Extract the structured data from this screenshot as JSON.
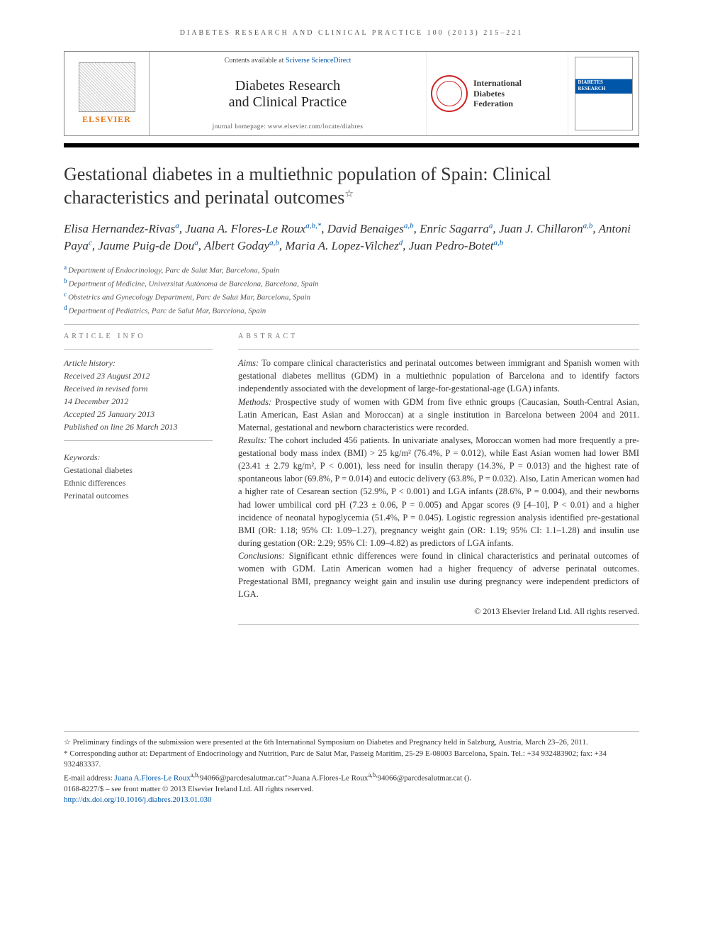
{
  "running_head": "DIABETES RESEARCH AND CLINICAL PRACTICE 100 (2013) 215–221",
  "masthead": {
    "elsevier": "ELSEVIER",
    "contents_prefix": "Contents available at ",
    "contents_link": "Sciverse ScienceDirect",
    "journal_line1": "Diabetes Research",
    "journal_line2": "and Clinical Practice",
    "homepage": "journal homepage: www.elsevier.com/locate/diabres",
    "idf_line1": "International",
    "idf_line2": "Diabetes",
    "idf_line3": "Federation",
    "cover_title": "DIABETES RESEARCH CLINICAL PRACTICE"
  },
  "title": "Gestational diabetes in a multiethnic population of Spain: Clinical characteristics and perinatal outcomes",
  "title_star": "☆",
  "authors_html_parts": [
    {
      "name": "Elisa Hernandez-Rivas",
      "aff": "a"
    },
    {
      "name": "Juana A. Flores-Le Roux",
      "aff": "a,b,*"
    },
    {
      "name": "David Benaiges",
      "aff": "a,b"
    },
    {
      "name": "Enric Sagarra",
      "aff": "a"
    },
    {
      "name": "Juan J. Chillaron",
      "aff": "a,b"
    },
    {
      "name": "Antoni Paya",
      "aff": "c"
    },
    {
      "name": "Jaume Puig-de Dou",
      "aff": "a"
    },
    {
      "name": "Albert Goday",
      "aff": "a,b"
    },
    {
      "name": "Maria A. Lopez-Vilchez",
      "aff": "d"
    },
    {
      "name": "Juan Pedro-Botet",
      "aff": "a,b"
    }
  ],
  "affiliations": [
    {
      "key": "a",
      "text": "Department of Endocrinology, Parc de Salut Mar, Barcelona, Spain"
    },
    {
      "key": "b",
      "text": "Department of Medicine, Universitat Autònoma de Barcelona, Barcelona, Spain"
    },
    {
      "key": "c",
      "text": "Obstetrics and Gynecology Department, Parc de Salut Mar, Barcelona, Spain"
    },
    {
      "key": "d",
      "text": "Department of Pediatrics, Parc de Salut Mar, Barcelona, Spain"
    }
  ],
  "article_info_head": "ARTICLE INFO",
  "abstract_head": "ABSTRACT",
  "history": {
    "label": "Article history:",
    "received": "Received 23 August 2012",
    "revised1": "Received in revised form",
    "revised2": "14 December 2012",
    "accepted": "Accepted 25 January 2013",
    "published": "Published on line 26 March 2013"
  },
  "keywords": {
    "label": "Keywords:",
    "items": [
      "Gestational diabetes",
      "Ethnic differences",
      "Perinatal outcomes"
    ]
  },
  "abstract": {
    "aims_label": "Aims:",
    "aims": " To compare clinical characteristics and perinatal outcomes between immigrant and Spanish women with gestational diabetes mellitus (GDM) in a multiethnic population of Barcelona and to identify factors independently associated with the development of large-for-gestational-age (LGA) infants.",
    "methods_label": "Methods:",
    "methods": " Prospective study of women with GDM from five ethnic groups (Caucasian, South-Central Asian, Latin American, East Asian and Moroccan) at a single institution in Barcelona between 2004 and 2011. Maternal, gestational and newborn characteristics were recorded.",
    "results_label": "Results:",
    "results": " The cohort included 456 patients. In univariate analyses, Moroccan women had more frequently a pre-gestational body mass index (BMI) > 25 kg/m² (76.4%, P = 0.012), while East Asian women had lower BMI (23.41 ± 2.79 kg/m², P < 0.001), less need for insulin therapy (14.3%, P = 0.013) and the highest rate of spontaneous labor (69.8%, P = 0.014) and eutocic delivery (63.8%, P = 0.032). Also, Latin American women had a higher rate of Cesarean section (52.9%, P < 0.001) and LGA infants (28.6%, P = 0.004), and their newborns had lower umbilical cord pH (7.23 ± 0.06, P = 0.005) and Apgar scores (9 [4–10], P < 0.01) and a higher incidence of neonatal hypoglycemia (51.4%, P = 0.045). Logistic regression analysis identified pre-gestational BMI (OR: 1.18; 95% CI: 1.09–1.27), pregnancy weight gain (OR: 1.19; 95% CI: 1.1–1.28) and insulin use during gestation (OR: 2.29; 95% CI: 1.09–4.82) as predictors of LGA infants.",
    "conclusions_label": "Conclusions:",
    "conclusions": " Significant ethnic differences were found in clinical characteristics and perinatal outcomes of women with GDM. Latin American women had a higher frequency of adverse perinatal outcomes. Pregestational BMI, pregnancy weight gain and insulin use during pregnancy were independent predictors of LGA.",
    "copyright": "© 2013 Elsevier Ireland Ltd. All rights reserved."
  },
  "footnotes": {
    "star": "☆ Preliminary findings of the submission were presented at the 6th International Symposium on Diabetes and Pregnancy held in Salzburg, Austria, March 23–26, 2011.",
    "corr": "* Corresponding author at: Department of Endocrinology and Nutrition, Parc de Salut Mar, Passeig Marítim, 25-29 E-08003 Barcelona, Spain. Tel.: +34 932483902; fax: +34 932483337.",
    "email_label": "E-mail address: ",
    "email_link": "Juana A.Flores-Le Roux",
    "email_sup": "a,b,",
    "email_tail1": "94066@parcdesalutmar.cat\">Juana A.Flores-Le Roux",
    "email_tail2": "94066@parcdesalutmar.cat ().",
    "issn": "0168-8227/$ – see front matter © 2013 Elsevier Ireland Ltd. All rights reserved.",
    "doi": "http://dx.doi.org/10.1016/j.diabres.2013.01.030"
  },
  "colors": {
    "link": "#0056a8",
    "elsevier_orange": "#e67817",
    "rule": "#bbbbbb",
    "text": "#333333"
  }
}
